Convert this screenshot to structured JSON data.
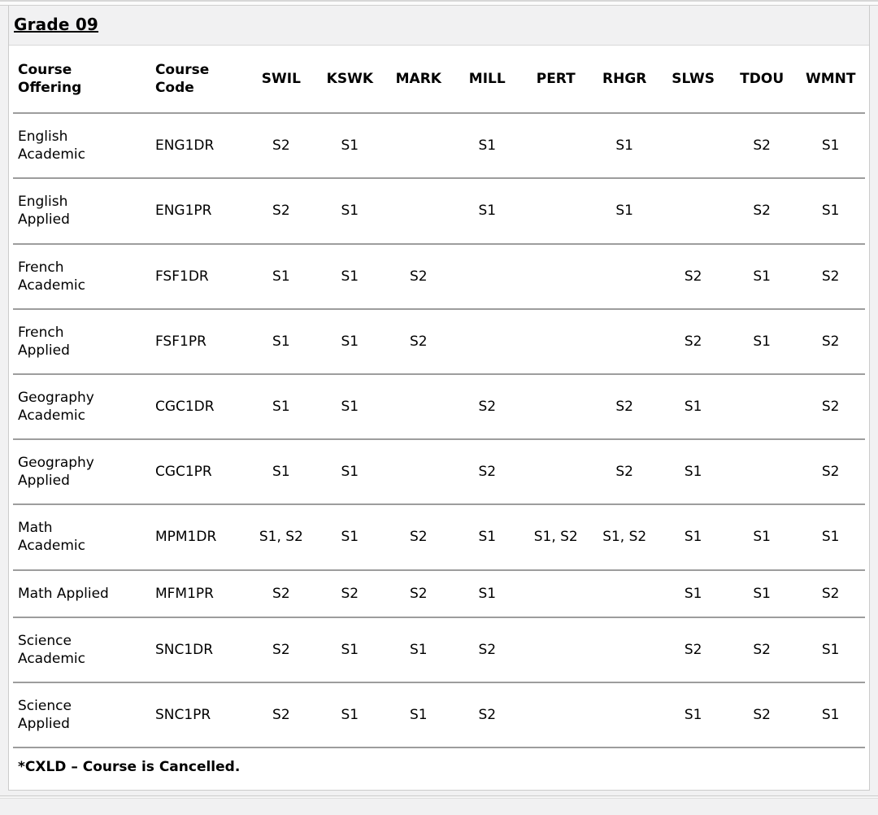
{
  "section": {
    "title": "Grade 09",
    "footnote": "*CXLD – Course is Cancelled."
  },
  "table": {
    "columns": [
      "Course\nOffering",
      "Course\nCode",
      "SWIL",
      "KSWK",
      "MARK",
      "MILL",
      "PERT",
      "RHGR",
      "SLWS",
      "TDOU",
      "WMNT"
    ],
    "rows": [
      {
        "offering": "English\nAcademic",
        "code": "ENG1DR",
        "values": [
          "S2",
          "S1",
          "",
          "S1",
          "",
          "S1",
          "",
          "S2",
          "S1"
        ]
      },
      {
        "offering": "English\nApplied",
        "code": "ENG1PR",
        "values": [
          "S2",
          "S1",
          "",
          "S1",
          "",
          "S1",
          "",
          "S2",
          "S1"
        ]
      },
      {
        "offering": "French\nAcademic",
        "code": "FSF1DR",
        "values": [
          "S1",
          "S1",
          "S2",
          "",
          "",
          "",
          "S2",
          "S1",
          "S2"
        ]
      },
      {
        "offering": "French\nApplied",
        "code": "FSF1PR",
        "values": [
          "S1",
          "S1",
          "S2",
          "",
          "",
          "",
          "S2",
          "S1",
          "S2"
        ]
      },
      {
        "offering": "Geography\nAcademic",
        "code": "CGC1DR",
        "values": [
          "S1",
          "S1",
          "",
          "S2",
          "",
          "S2",
          "S1",
          "",
          "S2"
        ]
      },
      {
        "offering": "Geography\nApplied",
        "code": "CGC1PR",
        "values": [
          "S1",
          "S1",
          "",
          "S2",
          "",
          "S2",
          "S1",
          "",
          "S2"
        ]
      },
      {
        "offering": "Math\nAcademic",
        "code": "MPM1DR",
        "values": [
          "S1, S2",
          "S1",
          "S2",
          "S1",
          "S1, S2",
          "S1, S2",
          "S1",
          "S1",
          "S1"
        ]
      },
      {
        "offering": "Math Applied",
        "code": "MFM1PR",
        "values": [
          "S2",
          "S2",
          "S2",
          "S1",
          "",
          "",
          "S1",
          "S1",
          "S2"
        ]
      },
      {
        "offering": "Science\nAcademic",
        "code": "SNC1DR",
        "values": [
          "S2",
          "S1",
          "S1",
          "S2",
          "",
          "",
          "S2",
          "S2",
          "S1"
        ]
      },
      {
        "offering": "Science\nApplied",
        "code": "SNC1PR",
        "values": [
          "S2",
          "S1",
          "S1",
          "S2",
          "",
          "",
          "S1",
          "S2",
          "S1"
        ]
      }
    ]
  },
  "colors": {
    "page_background": "#f1f1f2",
    "panel_background": "#ffffff",
    "border": "#cbcbcb",
    "row_separator": "#9d9d9d",
    "text": "#000000"
  }
}
